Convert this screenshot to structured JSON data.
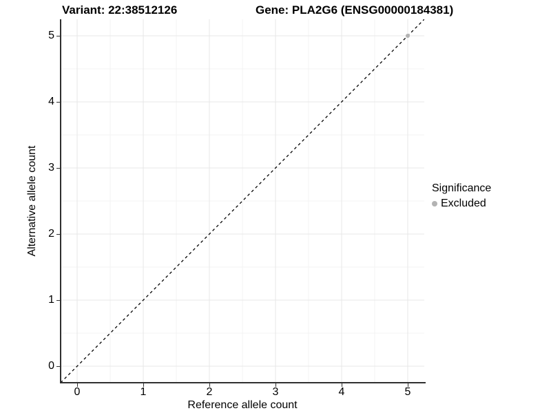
{
  "chart_data": {
    "type": "scatter",
    "title_left": "Variant: 22:38512126",
    "title_right": "Gene: PLA2G6 (ENSG00000184381)",
    "xlabel": "Reference allele count",
    "ylabel": "Alternative allele count",
    "xlim": [
      -0.25,
      5.25
    ],
    "ylim": [
      -0.25,
      5.25
    ],
    "xticks": [
      "0",
      "1",
      "2",
      "3",
      "4",
      "5"
    ],
    "yticks": [
      "0",
      "1",
      "2",
      "3",
      "4",
      "5"
    ],
    "xtick_values": [
      0,
      1,
      2,
      3,
      4,
      5
    ],
    "ytick_values": [
      0,
      1,
      2,
      3,
      4,
      5
    ],
    "minor_tick_values": [
      0.5,
      1.5,
      2.5,
      3.5,
      4.5
    ],
    "grid": "major+minor",
    "reference_line": {
      "kind": "identity",
      "style": "dashed",
      "color": "#000000",
      "x": [
        -0.25,
        5.25
      ],
      "y": [
        -0.25,
        5.25
      ]
    },
    "series": [
      {
        "name": "Excluded",
        "color": "#b3b3b3",
        "points": [
          [
            5,
            5
          ]
        ]
      }
    ],
    "legend": {
      "title": "Significance",
      "position": "right",
      "items": [
        {
          "label": "Excluded",
          "color": "#b3b3b3"
        }
      ]
    },
    "style": {
      "grid_major_color": "#e7e7e7",
      "grid_minor_color": "#f3f3f3",
      "axis_line_color": "#2f2f2f",
      "point_color": "#b3b3b3",
      "line_color": "#000000",
      "background": "#ffffff"
    }
  }
}
